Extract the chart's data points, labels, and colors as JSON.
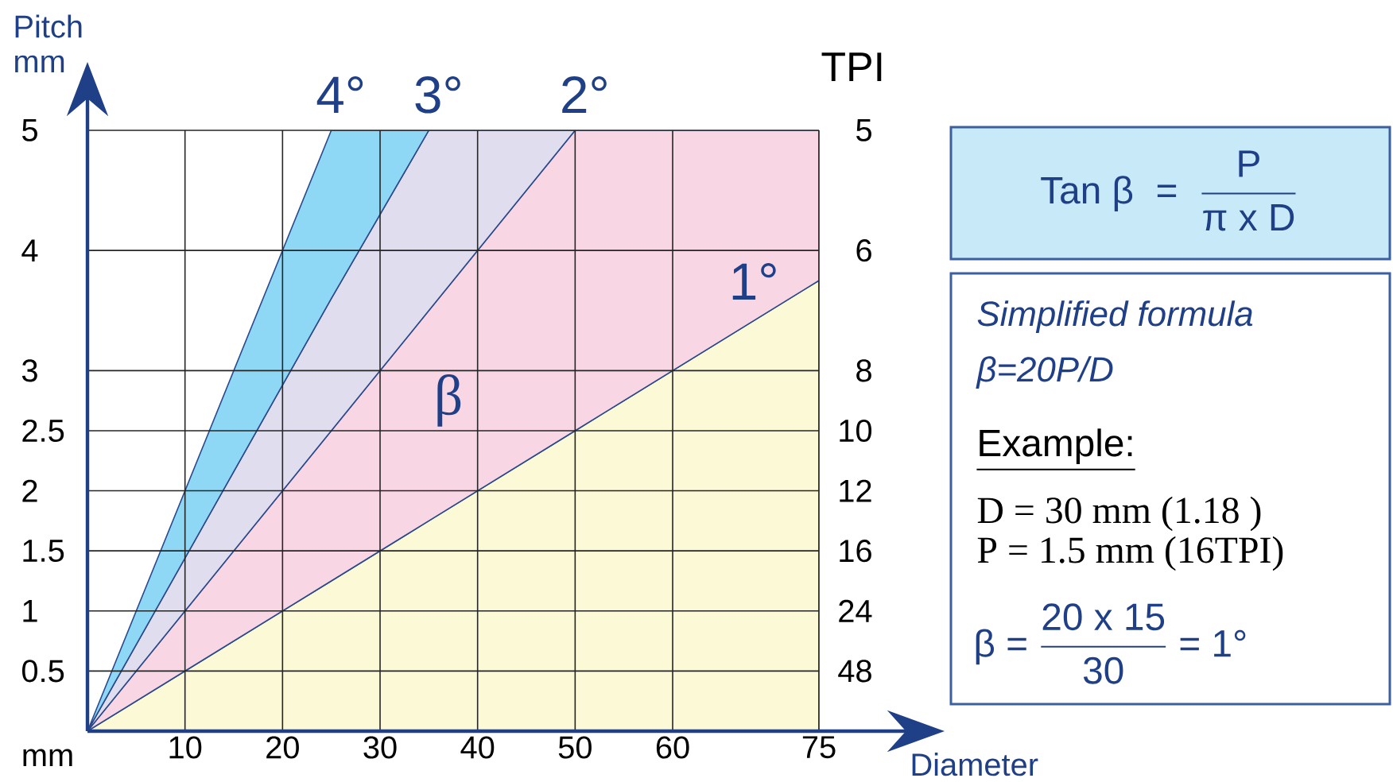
{
  "chart_data": {
    "type": "area",
    "stacked": true,
    "ylabel": "Pitch mm",
    "xlabel": "Diameter",
    "xlim": [
      0,
      75
    ],
    "xticks": [
      10,
      20,
      30,
      40,
      50,
      60,
      75
    ],
    "ylim": [
      0,
      5
    ],
    "yticks": [
      0.5,
      1,
      1.5,
      2,
      2.5,
      3,
      4,
      5
    ],
    "grid": true,
    "x": [
      0,
      25,
      35,
      50,
      75
    ],
    "series": [
      {
        "name": "1°",
        "color": "#fbf9d6",
        "values": [
          0,
          1.25,
          1.75,
          2.5,
          3.75
        ]
      },
      {
        "name": "2°",
        "color": "#f8d6e4",
        "values": [
          0,
          1.25,
          1.75,
          2.5,
          1.25
        ]
      },
      {
        "name": "3°",
        "color": "#e0deee",
        "values": [
          0,
          1.1,
          1.5,
          0,
          null
        ]
      },
      {
        "name": "4°",
        "color": "#8ed8f5",
        "values": [
          0,
          1.4,
          0,
          null,
          null
        ]
      }
    ],
    "annotations": [
      "mm",
      "β",
      "\\text{Tan β}\\;\\;\\text{=}\\;\\;\\frac{\\text{P}}{\\text{π x D}}",
      "Simplified formula",
      "β=20P/D",
      "Example:",
      "D = 30 mm (1.18 )",
      "P = 1.5 mm (16TPI)",
      "\\text{β =}\\;\\frac{\\text{20 x 15}}{\\text{30}}\\;\\text{= 1°}",
      "TPI",
      "5",
      "6",
      "8",
      "10",
      "12",
      "16",
      "24",
      "48"
    ]
  }
}
